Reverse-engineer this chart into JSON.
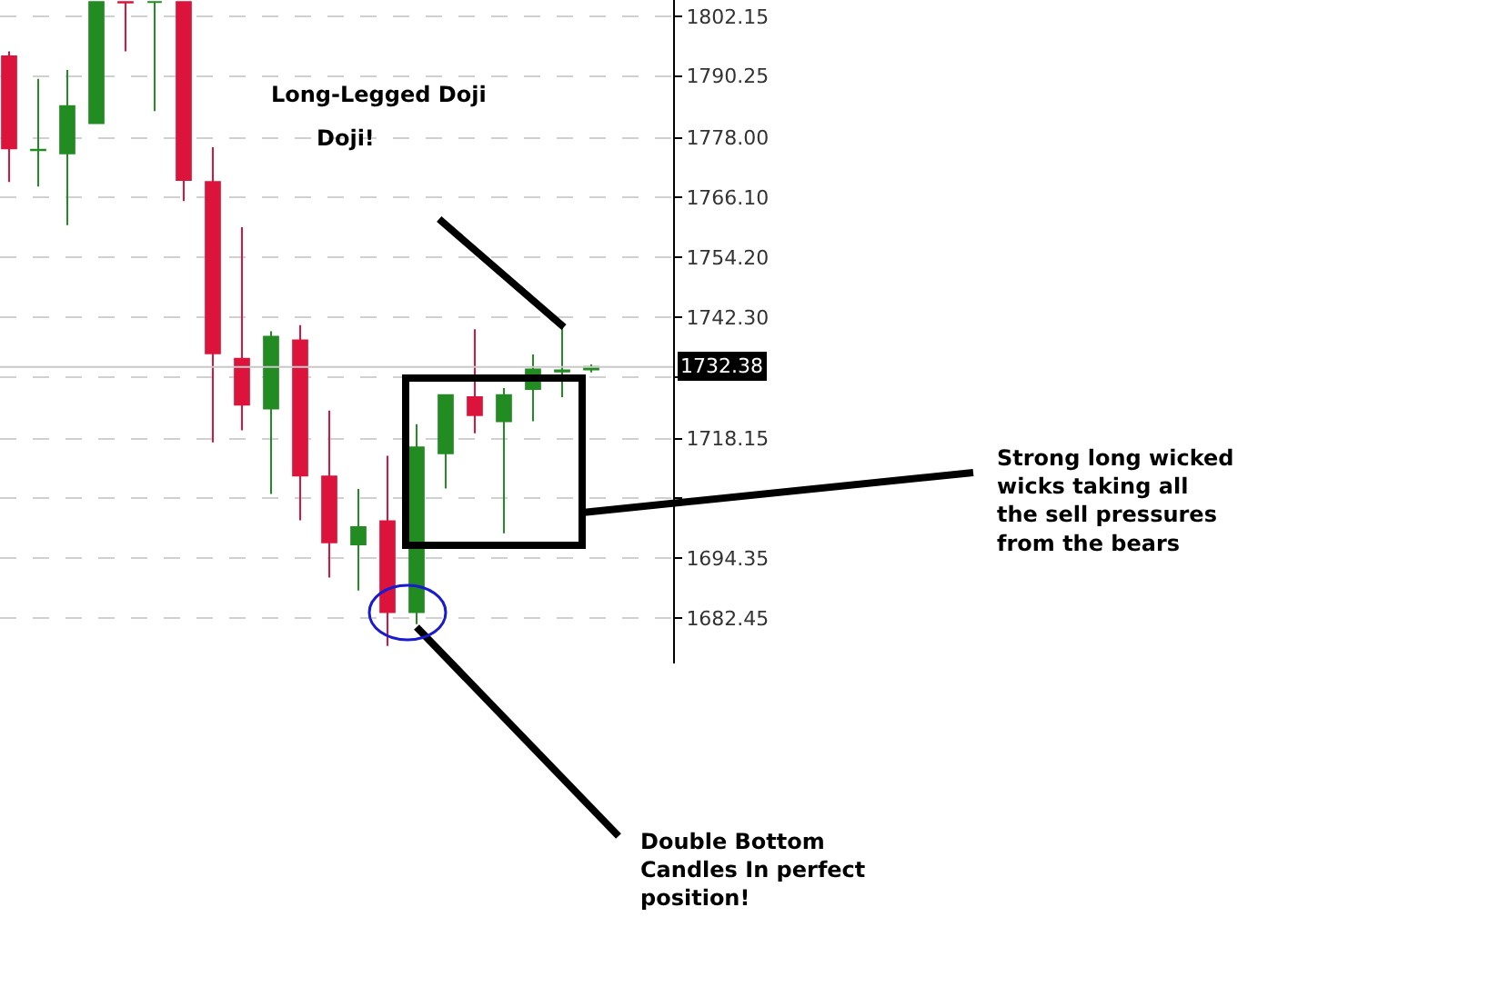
{
  "chart_data": {
    "type": "candlestick",
    "categories": [
      null,
      null,
      null,
      null,
      null,
      null,
      null,
      null,
      null,
      null,
      null,
      null,
      null,
      null,
      null,
      null,
      null,
      null,
      null,
      null,
      null
    ],
    "ohlc": [
      [
        1794.2,
        1795.2,
        1769.2,
        1775.9
      ],
      [
        1775.5,
        1789.7,
        1768.3,
        1775.6
      ],
      [
        1774.9,
        1791.5,
        1760.6,
        1784.3
      ],
      [
        1780.9,
        1805.0,
        1780.9,
        1805.0
      ],
      [
        1805.0,
        1805.0,
        1795.2,
        1804.9
      ],
      [
        1805.0,
        1805.0,
        1783.3,
        1805.0
      ],
      [
        1805.0,
        1805.0,
        1765.4,
        1769.6
      ],
      [
        1769.2,
        1776.1,
        1717.4,
        1735.1
      ],
      [
        1734.0,
        1760.2,
        1719.8,
        1724.9
      ],
      [
        1724.1,
        1739.5,
        1707.1,
        1738.4
      ],
      [
        1737.7,
        1740.7,
        1701.9,
        1710.8
      ],
      [
        1710.6,
        1723.7,
        1690.5,
        1697.5
      ],
      [
        1697.1,
        1708.1,
        1687.9,
        1700.5
      ],
      [
        1701.7,
        1714.7,
        1676.9,
        1683.6
      ],
      [
        1683.6,
        1721.0,
        1681.2,
        1716.4
      ],
      [
        1715.2,
        1726.8,
        1708.2,
        1726.8
      ],
      [
        1726.4,
        1739.9,
        1719.2,
        1722.8
      ],
      [
        1721.6,
        1728.2,
        1699.3,
        1726.8
      ],
      [
        1728.0,
        1734.9,
        1721.6,
        1731.9
      ],
      [
        1731.5,
        1740.3,
        1726.4,
        1731.7
      ],
      [
        1731.9,
        1732.9,
        1731.3,
        1732.4
      ]
    ],
    "colors": [
      "#dc143c",
      "#228b22",
      "#228b22",
      "#228b22",
      "#dc143c",
      "#228b22",
      "#dc143c",
      "#dc143c",
      "#dc143c",
      "#228b22",
      "#dc143c",
      "#dc143c",
      "#228b22",
      "#dc143c",
      "#228b22",
      "#228b22",
      "#dc143c",
      "#228b22",
      "#228b22",
      "#228b22",
      "#228b22"
    ],
    "ylim": [
      1673.4,
      1805.4
    ],
    "yticks": [
      1682.45,
      1694.35,
      {
        "value": 1706.25,
        "label": null
      },
      1718.15,
      {
        "value": 1730.4,
        "label": null
      },
      {
        "value": 1742.3,
        "label": "1742.30"
      },
      {
        "value": 1754.2,
        "label": "1754.20"
      },
      {
        "value": 1766.1,
        "label": "1766.10"
      },
      {
        "value": 1778,
        "label": "1778.00"
      },
      1790.25,
      1802.15
    ],
    "tick_labels": "y",
    "grid": true,
    "ref_lines": [
      {
        "axis": "y",
        "value": 1732.38,
        "label": "1732.38",
        "color": "#c8c8c8"
      }
    ],
    "annotations": [
      "Long-Legged Doji",
      "Doji!",
      "Strong long wicked wicks taking all the sell pressures from the bears",
      "Double Bottom Candles In perfect position!"
    ]
  }
}
